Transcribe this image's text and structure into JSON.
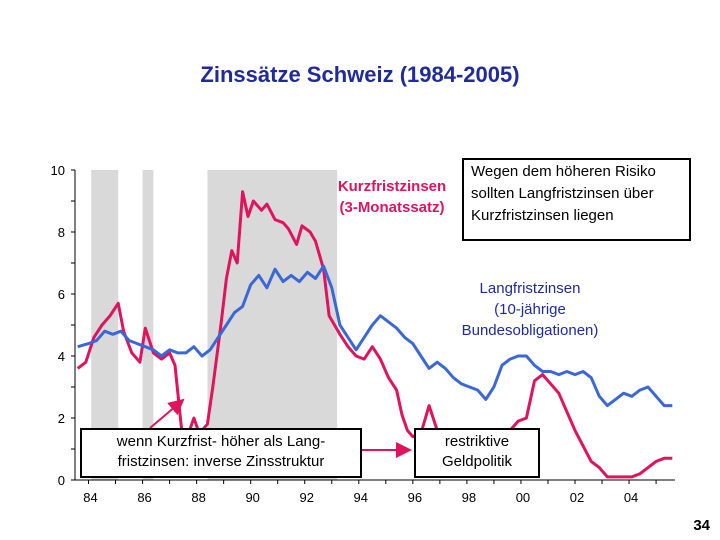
{
  "title": "Zinssätze Schweiz (1984-2005)",
  "page_number": "34",
  "labels": {
    "short_series": "Kurzfristzinsen\n(3-Monatssatz)",
    "long_series": "Langfristzinsen\n(10-jährige\nBundesobligationen)",
    "risk_box": "Wegen dem höheren Risiko\nsollten Langfristzinsen über\nKurzfristzinsen liegen",
    "inverse_box": "wenn Kurzfrist- höher als Lang-\nfristzinsen: inverse Zinsstruktur",
    "restrictive_box": "restriktive\nGeldpolitik"
  },
  "colors": {
    "short": "#e0145e",
    "long": "#3a68d8",
    "shade": "#d9d9d9",
    "text_blue": "#1f2a9c"
  },
  "chart_data": {
    "type": "line",
    "title": "Zinssätze Schweiz (1984-2005)",
    "xlabel": "",
    "ylabel": "",
    "xlim": [
      1983.5,
      2005.7
    ],
    "ylim": [
      0,
      10
    ],
    "x_ticks": [
      {
        "v": 1984,
        "label": "84"
      },
      {
        "v": 1986,
        "label": "86"
      },
      {
        "v": 1988,
        "label": "88"
      },
      {
        "v": 1990,
        "label": "90"
      },
      {
        "v": 1992,
        "label": "92"
      },
      {
        "v": 1994,
        "label": "94"
      },
      {
        "v": 1996,
        "label": "96"
      },
      {
        "v": 1998,
        "label": "98"
      },
      {
        "v": 2000,
        "label": "00"
      },
      {
        "v": 2002,
        "label": "02"
      },
      {
        "v": 2004,
        "label": "04"
      }
    ],
    "y_ticks": [
      0,
      2,
      4,
      6,
      8,
      10
    ],
    "shaded_periods": [
      [
        1984.1,
        1985.1
      ],
      [
        1986.0,
        1986.4
      ],
      [
        1988.4,
        1993.2
      ]
    ],
    "series": [
      {
        "name": "Kurzfristzinsen (3-Monatssatz)",
        "color": "#e0145e",
        "x": [
          1983.6,
          1983.9,
          1984.2,
          1984.5,
          1984.8,
          1985.1,
          1985.3,
          1985.6,
          1985.9,
          1986.1,
          1986.4,
          1986.7,
          1987.0,
          1987.2,
          1987.4,
          1987.5,
          1987.7,
          1987.9,
          1988.1,
          1988.4,
          1988.6,
          1988.9,
          1989.1,
          1989.3,
          1989.5,
          1989.7,
          1989.9,
          1990.1,
          1990.4,
          1990.6,
          1990.9,
          1991.2,
          1991.4,
          1991.7,
          1991.9,
          1992.2,
          1992.4,
          1992.7,
          1992.9,
          1993.1,
          1993.3,
          1993.6,
          1993.9,
          1994.2,
          1994.5,
          1994.8,
          1995.1,
          1995.4,
          1995.6,
          1995.8,
          1996.0,
          1996.3,
          1996.6,
          1996.9,
          1997.2,
          1997.5,
          1997.8,
          1998.1,
          1998.4,
          1998.7,
          1999.0,
          1999.3,
          1999.6,
          1999.9,
          2000.2,
          2000.5,
          2000.8,
          2001.1,
          2001.4,
          2001.7,
          2002.0,
          2002.3,
          2002.6,
          2002.9,
          2003.2,
          2003.5,
          2003.8,
          2004.1,
          2004.4,
          2004.7,
          2005.0,
          2005.3,
          2005.6
        ],
        "values": [
          3.6,
          3.8,
          4.6,
          5.0,
          5.3,
          5.7,
          4.8,
          4.1,
          3.8,
          4.9,
          4.1,
          3.9,
          4.1,
          3.7,
          2.0,
          1.2,
          1.5,
          2.0,
          1.5,
          1.8,
          3.0,
          5.0,
          6.5,
          7.4,
          7.0,
          9.3,
          8.5,
          9.0,
          8.7,
          8.9,
          8.4,
          8.3,
          8.1,
          7.6,
          8.2,
          8.0,
          7.7,
          6.8,
          5.3,
          5.0,
          4.7,
          4.3,
          4.0,
          3.9,
          4.3,
          3.9,
          3.3,
          2.9,
          2.1,
          1.6,
          1.4,
          1.5,
          2.4,
          1.6,
          1.5,
          1.5,
          1.4,
          1.5,
          1.4,
          1.6,
          1.0,
          1.3,
          1.6,
          1.9,
          2.0,
          3.2,
          3.4,
          3.1,
          2.8,
          2.2,
          1.6,
          1.1,
          0.6,
          0.4,
          0.1,
          0.1,
          0.1,
          0.1,
          0.2,
          0.4,
          0.6,
          0.7,
          0.7
        ]
      },
      {
        "name": "Langfristzinsen (10-jährige Bundesobligationen)",
        "color": "#3a68d8",
        "x": [
          1983.6,
          1984.0,
          1984.3,
          1984.6,
          1984.9,
          1985.2,
          1985.5,
          1985.8,
          1986.1,
          1986.4,
          1986.7,
          1987.0,
          1987.3,
          1987.6,
          1987.9,
          1988.2,
          1988.5,
          1988.8,
          1989.1,
          1989.4,
          1989.7,
          1990.0,
          1990.3,
          1990.6,
          1990.9,
          1991.2,
          1991.5,
          1991.8,
          1992.1,
          1992.4,
          1992.7,
          1993.0,
          1993.3,
          1993.6,
          1993.9,
          1994.2,
          1994.5,
          1994.8,
          1995.1,
          1995.4,
          1995.7,
          1996.0,
          1996.3,
          1996.6,
          1996.9,
          1997.2,
          1997.5,
          1997.8,
          1998.1,
          1998.4,
          1998.7,
          1999.0,
          1999.3,
          1999.6,
          1999.9,
          2000.2,
          2000.5,
          2000.8,
          2001.1,
          2001.4,
          2001.7,
          2002.0,
          2002.3,
          2002.6,
          2002.9,
          2003.2,
          2003.5,
          2003.8,
          2004.1,
          2004.4,
          2004.7,
          2005.0,
          2005.3,
          2005.6
        ],
        "values": [
          4.3,
          4.4,
          4.5,
          4.8,
          4.7,
          4.8,
          4.5,
          4.4,
          4.3,
          4.2,
          4.0,
          4.2,
          4.1,
          4.1,
          4.3,
          4.0,
          4.2,
          4.6,
          5.0,
          5.4,
          5.6,
          6.3,
          6.6,
          6.2,
          6.8,
          6.4,
          6.6,
          6.4,
          6.7,
          6.5,
          6.9,
          6.2,
          5.0,
          4.6,
          4.2,
          4.6,
          5.0,
          5.3,
          5.1,
          4.9,
          4.6,
          4.4,
          4.0,
          3.6,
          3.8,
          3.6,
          3.3,
          3.1,
          3.0,
          2.9,
          2.6,
          3.0,
          3.7,
          3.9,
          4.0,
          4.0,
          3.7,
          3.5,
          3.5,
          3.4,
          3.5,
          3.4,
          3.5,
          3.3,
          2.7,
          2.4,
          2.6,
          2.8,
          2.7,
          2.9,
          3.0,
          2.7,
          2.4,
          2.4
        ]
      }
    ]
  }
}
